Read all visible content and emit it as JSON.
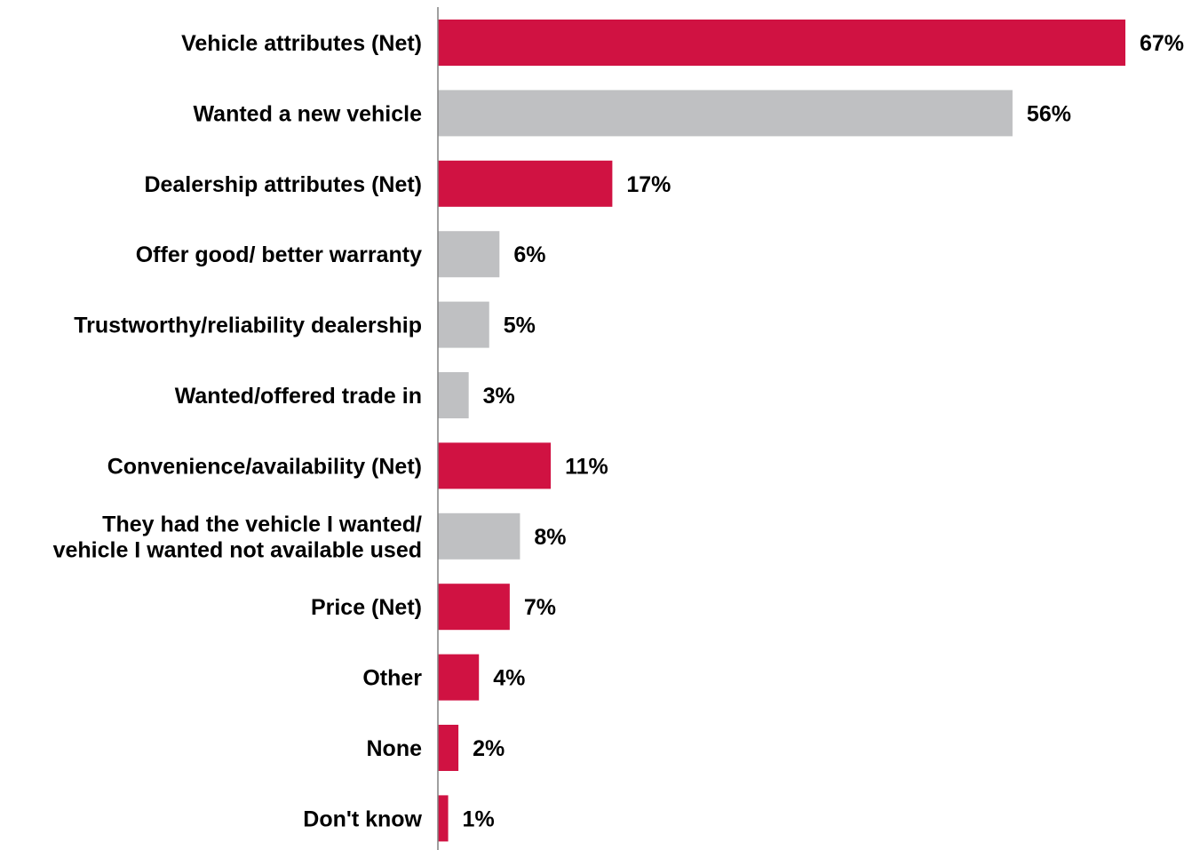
{
  "chart_data": {
    "type": "bar",
    "orientation": "horizontal",
    "categories": [
      "Vehicle attributes (Net)",
      "Wanted a new vehicle",
      "Dealership attributes (Net)",
      "Offer good/ better warranty",
      "Trustworthy/reliability dealership",
      "Wanted/offered trade in",
      "Convenience/availability (Net)",
      "They had the vehicle I wanted/\nvehicle I wanted not available used",
      "Price (Net)",
      "Other",
      "None",
      "Don't know"
    ],
    "values": [
      67,
      56,
      17,
      6,
      5,
      3,
      11,
      8,
      7,
      4,
      2,
      1
    ],
    "value_labels": [
      "67%",
      "56%",
      "17%",
      "6%",
      "5%",
      "3%",
      "11%",
      "8%",
      "7%",
      "4%",
      "2%",
      "1%"
    ],
    "bar_kinds": [
      "net",
      "sub",
      "net",
      "sub",
      "sub",
      "sub",
      "net",
      "sub",
      "net",
      "net",
      "net",
      "net"
    ],
    "xlim": [
      0,
      70
    ],
    "grid": false,
    "legend": "none",
    "colors": {
      "net": "#D01242",
      "sub": "#BFC0C2",
      "axis": "#808080"
    }
  }
}
